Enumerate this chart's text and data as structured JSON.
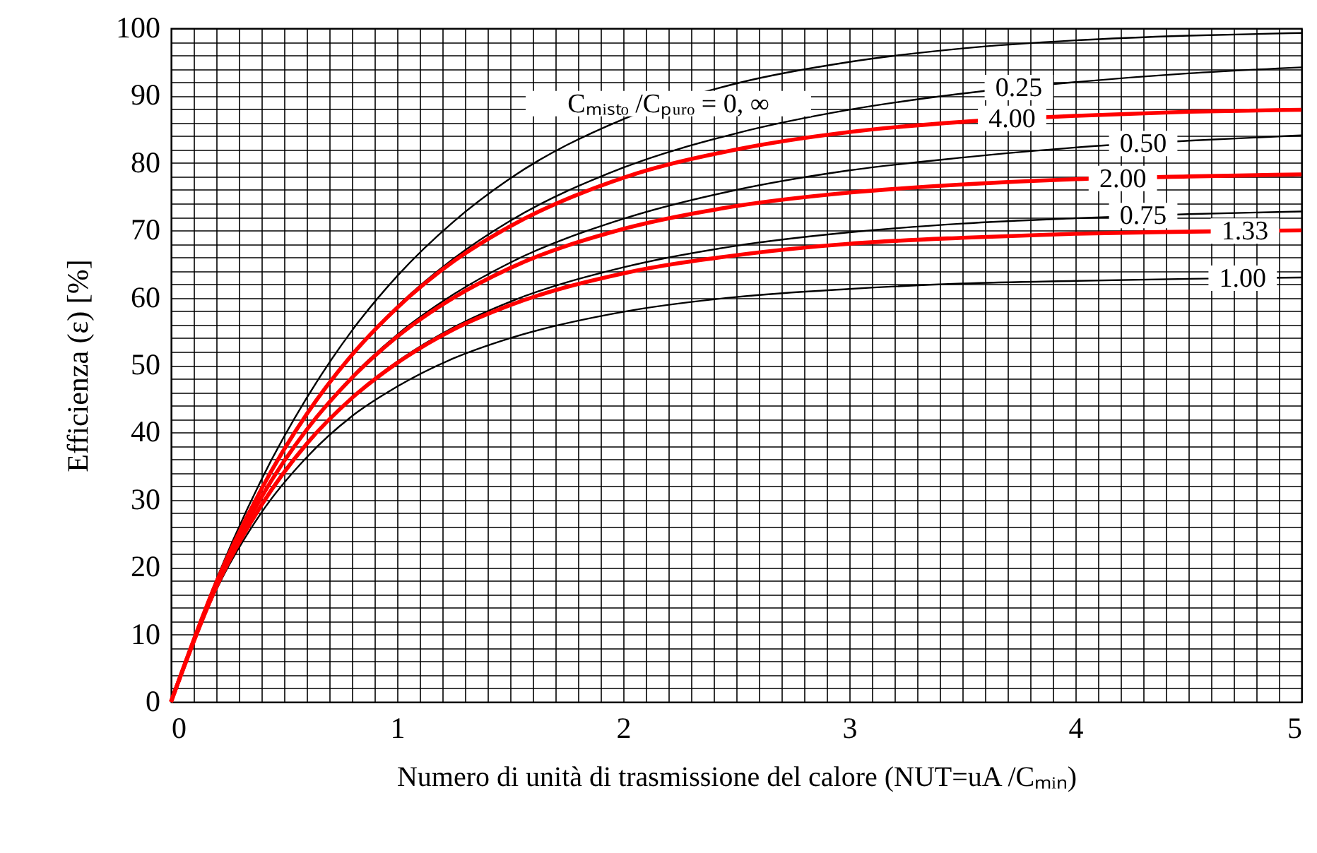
{
  "chart_data": {
    "type": "line",
    "xlabel": "Numero di unità di trasmissione del calore (NUT=uA /Cₘᵢₙ)",
    "ylabel": "Efficienza (ε) [%]",
    "x": [
      0,
      0.2,
      0.4,
      0.6,
      0.8,
      1,
      1.25,
      1.5,
      2,
      2.5,
      3,
      3.5,
      4,
      4.5,
      5
    ],
    "series": [
      {
        "color": "#000000",
        "values": [
          0,
          18.1,
          33.0,
          45.1,
          55.1,
          63.2,
          71.3,
          77.7,
          86.5,
          91.8,
          95.0,
          97.0,
          98.2,
          98.9,
          99.3
        ]
      },
      {
        "color": "#000000",
        "values": [
          0,
          17.7,
          31.7,
          42.7,
          51.6,
          58.7,
          65.8,
          71.4,
          79.3,
          84.4,
          87.9,
          90.3,
          92.0,
          93.3,
          94.2
        ]
      },
      {
        "color": "#000000",
        "values": [
          0,
          17.3,
          30.4,
          40.5,
          48.3,
          54.5,
          60.5,
          65.2,
          71.7,
          76.0,
          78.9,
          80.8,
          82.3,
          83.3,
          84.1
        ]
      },
      {
        "color": "#000000",
        "values": [
          0,
          16.9,
          29.2,
          38.3,
          45.2,
          50.5,
          55.6,
          59.4,
          64.5,
          67.7,
          69.7,
          71.0,
          71.8,
          72.4,
          72.8
        ]
      },
      {
        "color": "#000000",
        "values": [
          0,
          16.6,
          28.1,
          36.3,
          42.4,
          46.8,
          51.0,
          54.0,
          57.9,
          60.1,
          61.3,
          62.1,
          62.5,
          62.8,
          63.0
        ]
      },
      {
        "color": "#ff0000",
        "values": [
          0,
          17.7,
          31.6,
          42.7,
          51.5,
          58.5,
          65.4,
          70.6,
          77.8,
          82.0,
          84.6,
          86.1,
          87.0,
          87.6,
          87.9
        ]
      },
      {
        "color": "#ff0000",
        "values": [
          0,
          17.3,
          30.4,
          40.4,
          48.1,
          54.2,
          60.0,
          64.4,
          70.2,
          73.6,
          75.6,
          76.8,
          77.6,
          78.0,
          78.3
        ]
      },
      {
        "color": "#ff0000",
        "values": [
          0,
          17.0,
          29.2,
          38.3,
          45.1,
          50.3,
          55.3,
          58.9,
          63.6,
          66.3,
          68.0,
          68.9,
          69.5,
          69.8,
          70.0
        ]
      }
    ],
    "annotations": [
      {
        "text": "Cₘᵢₛₜₒ /Cₚᵤᵣₒ = 0, ∞",
        "x": 2.2,
        "y": 88.8
      },
      {
        "text": "0.25",
        "x": 3.75,
        "y": 91.2
      },
      {
        "text": "4.00",
        "x": 3.72,
        "y": 86.6
      },
      {
        "text": "0.50",
        "x": 4.3,
        "y": 82.9
      },
      {
        "text": "2.00",
        "x": 4.21,
        "y": 77.7
      },
      {
        "text": "0.75",
        "x": 4.3,
        "y": 72.2
      },
      {
        "text": "1.33",
        "x": 4.75,
        "y": 69.9
      },
      {
        "text": "1.00",
        "x": 4.74,
        "y": 62.9
      }
    ],
    "xlim": [
      0,
      5
    ],
    "xticks": [
      0,
      {
        "value": 0.1,
        "label": null
      },
      {
        "value": 0.2,
        "label": null
      },
      {
        "value": 0.3,
        "label": null
      },
      {
        "value": 0.4,
        "label": null
      },
      {
        "value": 0.5,
        "label": null
      },
      {
        "value": 0.6,
        "label": null
      },
      {
        "value": 0.7,
        "label": null
      },
      {
        "value": 0.8,
        "label": null
      },
      {
        "value": 0.9,
        "label": null
      },
      1,
      {
        "value": 1.1,
        "label": null
      },
      {
        "value": 1.2,
        "label": null
      },
      {
        "value": 1.3,
        "label": null
      },
      {
        "value": 1.4,
        "label": null
      },
      {
        "value": 1.5,
        "label": null
      },
      {
        "value": 1.6,
        "label": null
      },
      {
        "value": 1.7,
        "label": null
      },
      {
        "value": 1.8,
        "label": null
      },
      {
        "value": 1.9,
        "label": null
      },
      2,
      {
        "value": 2.1,
        "label": null
      },
      {
        "value": 2.2,
        "label": null
      },
      {
        "value": 2.3,
        "label": null
      },
      {
        "value": 2.4,
        "label": null
      },
      {
        "value": 2.5,
        "label": null
      },
      {
        "value": 2.6,
        "label": null
      },
      {
        "value": 2.7,
        "label": null
      },
      {
        "value": 2.8,
        "label": null
      },
      {
        "value": 2.9,
        "label": null
      },
      3,
      {
        "value": 3.1,
        "label": null
      },
      {
        "value": 3.2,
        "label": null
      },
      {
        "value": 3.3,
        "label": null
      },
      {
        "value": 3.4,
        "label": null
      },
      {
        "value": 3.5,
        "label": null
      },
      {
        "value": 3.6,
        "label": null
      },
      {
        "value": 3.7,
        "label": null
      },
      {
        "value": 3.8,
        "label": null
      },
      {
        "value": 3.9,
        "label": null
      },
      4,
      {
        "value": 4.1,
        "label": null
      },
      {
        "value": 4.2,
        "label": null
      },
      {
        "value": 4.3,
        "label": null
      },
      {
        "value": 4.4,
        "label": null
      },
      {
        "value": 4.5,
        "label": null
      },
      {
        "value": 4.6,
        "label": null
      },
      {
        "value": 4.7,
        "label": null
      },
      {
        "value": 4.8,
        "label": null
      },
      {
        "value": 4.9,
        "label": null
      },
      5
    ],
    "ylim": [
      0,
      100
    ],
    "yticks": [
      0,
      {
        "value": 2,
        "label": null
      },
      {
        "value": 4,
        "label": null
      },
      {
        "value": 6,
        "label": null
      },
      {
        "value": 8,
        "label": null
      },
      10,
      {
        "value": 12,
        "label": null
      },
      {
        "value": 14,
        "label": null
      },
      {
        "value": 16,
        "label": null
      },
      {
        "value": 18,
        "label": null
      },
      20,
      {
        "value": 22,
        "label": null
      },
      {
        "value": 24,
        "label": null
      },
      {
        "value": 26,
        "label": null
      },
      {
        "value": 28,
        "label": null
      },
      30,
      {
        "value": 32,
        "label": null
      },
      {
        "value": 34,
        "label": null
      },
      {
        "value": 36,
        "label": null
      },
      {
        "value": 38,
        "label": null
      },
      40,
      {
        "value": 42,
        "label": null
      },
      {
        "value": 44,
        "label": null
      },
      {
        "value": 46,
        "label": null
      },
      {
        "value": 48,
        "label": null
      },
      50,
      {
        "value": 52,
        "label": null
      },
      {
        "value": 54,
        "label": null
      },
      {
        "value": 56,
        "label": null
      },
      {
        "value": 58,
        "label": null
      },
      60,
      {
        "value": 62,
        "label": null
      },
      {
        "value": 64,
        "label": null
      },
      {
        "value": 66,
        "label": null
      },
      {
        "value": 68,
        "label": null
      },
      70,
      {
        "value": 72,
        "label": null
      },
      {
        "value": 74,
        "label": null
      },
      {
        "value": 76,
        "label": null
      },
      {
        "value": 78,
        "label": null
      },
      80,
      {
        "value": 82,
        "label": null
      },
      {
        "value": 84,
        "label": null
      },
      {
        "value": 86,
        "label": null
      },
      {
        "value": 88,
        "label": null
      },
      90,
      {
        "value": 92,
        "label": null
      },
      {
        "value": 94,
        "label": null
      },
      {
        "value": 96,
        "label": null
      },
      {
        "value": 98,
        "label": null
      },
      100
    ],
    "grid": true,
    "line_style": "solid",
    "marker": "none"
  }
}
